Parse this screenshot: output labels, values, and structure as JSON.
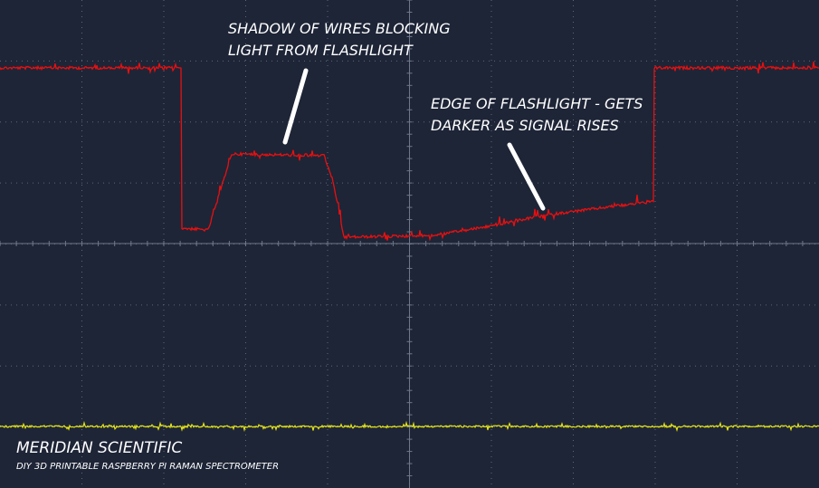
{
  "annotations": [
    {
      "lines": [
        "SHADOW OF WIRES BLOCKING",
        "LIGHT FROM FLASHLIGHT"
      ]
    },
    {
      "lines": [
        "EDGE OF FLASHLIGHT - GETS",
        "DARKER AS SIGNAL RISES"
      ]
    }
  ],
  "branding": {
    "title": "MERIDIAN SCIENTIFIC",
    "subtitle": "DIY 3D PRINTABLE RASPBERRY PI RAMAN SPECTROMETER"
  }
}
